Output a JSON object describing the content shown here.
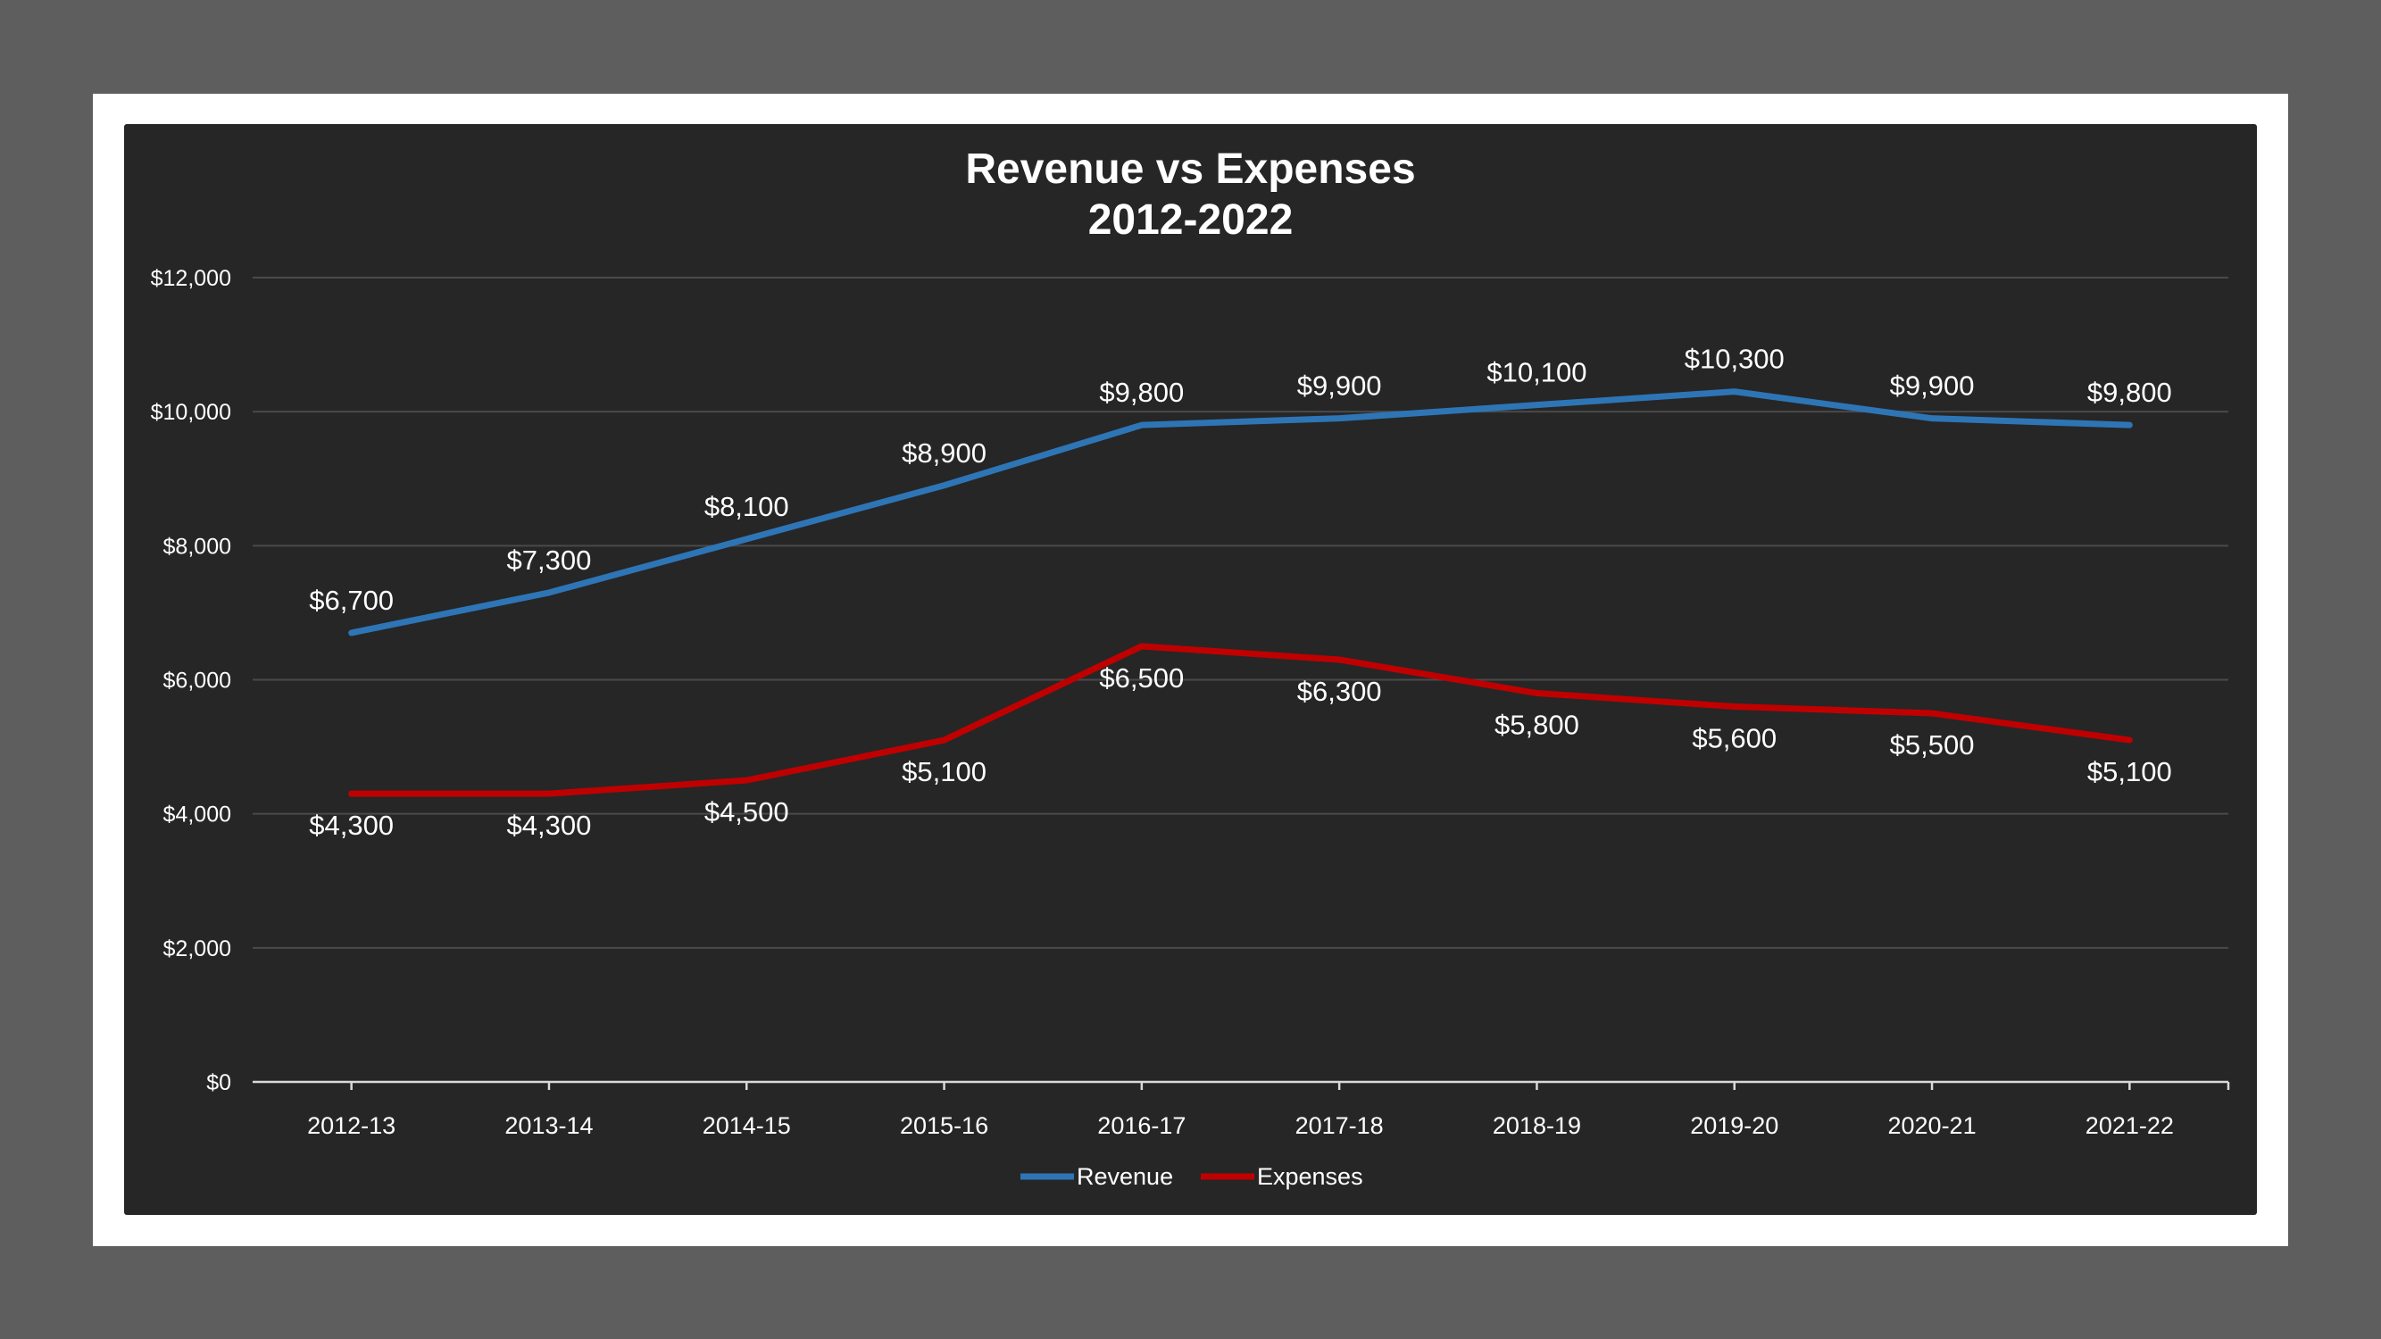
{
  "chart_data": {
    "type": "line",
    "title": [
      "Revenue vs Expenses",
      "2012-2022"
    ],
    "categories": [
      "2012-13",
      "2013-14",
      "2014-15",
      "2015-16",
      "2016-17",
      "2017-18",
      "2018-19",
      "2019-20",
      "2020-21",
      "2021-22"
    ],
    "series": [
      {
        "name": "Revenue",
        "color": "#2e75b6",
        "values": [
          6700,
          7300,
          8100,
          8900,
          9800,
          9900,
          10100,
          10300,
          9900,
          9800
        ]
      },
      {
        "name": "Expenses",
        "color": "#c00000",
        "values": [
          4300,
          4300,
          4500,
          5100,
          6500,
          6300,
          5800,
          5600,
          5500,
          5100
        ]
      }
    ],
    "ylim": [
      0,
      12000
    ],
    "yticks": [
      0,
      2000,
      4000,
      6000,
      8000,
      10000,
      12000
    ],
    "ytick_labels": [
      "$0",
      "$2,000",
      "$4,000",
      "$6,000",
      "$8,000",
      "$10,000",
      "$12,000"
    ],
    "data_labels": {
      "Revenue": [
        "$6,700",
        "$7,300",
        "$8,100",
        "$8,900",
        "$9,800",
        "$9,900",
        "$10,100",
        "$10,300",
        "$9,900",
        "$9,800"
      ],
      "Expenses": [
        "$4,300",
        "$4,300",
        "$4,500",
        "$5,100",
        "$6,500",
        "$6,300",
        "$5,800",
        "$5,600",
        "$5,500",
        "$5,100"
      ]
    },
    "grid": true,
    "legend": "bottom",
    "colors": {
      "background": "#262626",
      "frame": "#ffffff",
      "outer": "#5e5e5e",
      "text": "#ffffff",
      "grid": "#4a4a4a"
    }
  }
}
